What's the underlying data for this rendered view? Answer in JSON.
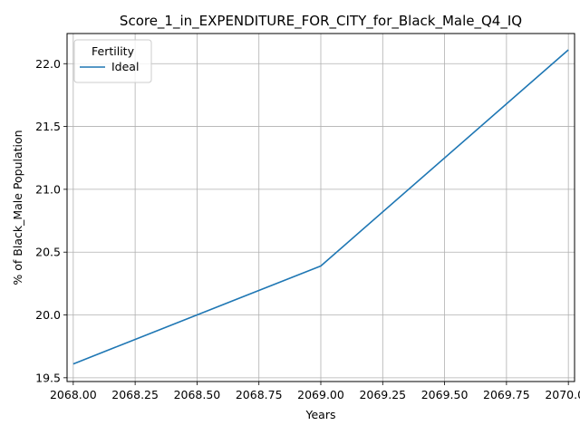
{
  "chart_data": {
    "type": "line",
    "title": "Score_1_in_EXPENDITURE_FOR_CITY_for_Black_Male_Q4_IQ",
    "xlabel": "Years",
    "ylabel": "% of Black_Male Population",
    "xlim": [
      2067.975,
      2070.025
    ],
    "ylim": [
      19.47,
      22.24
    ],
    "x_ticks": [
      2068.0,
      2068.25,
      2068.5,
      2068.75,
      2069.0,
      2069.25,
      2069.5,
      2069.75,
      2070.0
    ],
    "x_tick_labels": [
      "2068.00",
      "2068.25",
      "2068.50",
      "2068.75",
      "2069.00",
      "2069.25",
      "2069.50",
      "2069.75",
      "2070.00"
    ],
    "y_ticks": [
      19.5,
      20.0,
      20.5,
      21.0,
      21.5,
      22.0
    ],
    "y_tick_labels": [
      "19.5",
      "20.0",
      "20.5",
      "21.0",
      "21.5",
      "22.0"
    ],
    "grid": true,
    "legend": {
      "title": "Fertility",
      "placement": "top-left"
    },
    "series": [
      {
        "name": "Ideal",
        "color": "#1f77b4",
        "x": [
          2068,
          2069,
          2070
        ],
        "y": [
          19.61,
          20.39,
          22.11
        ]
      }
    ]
  }
}
